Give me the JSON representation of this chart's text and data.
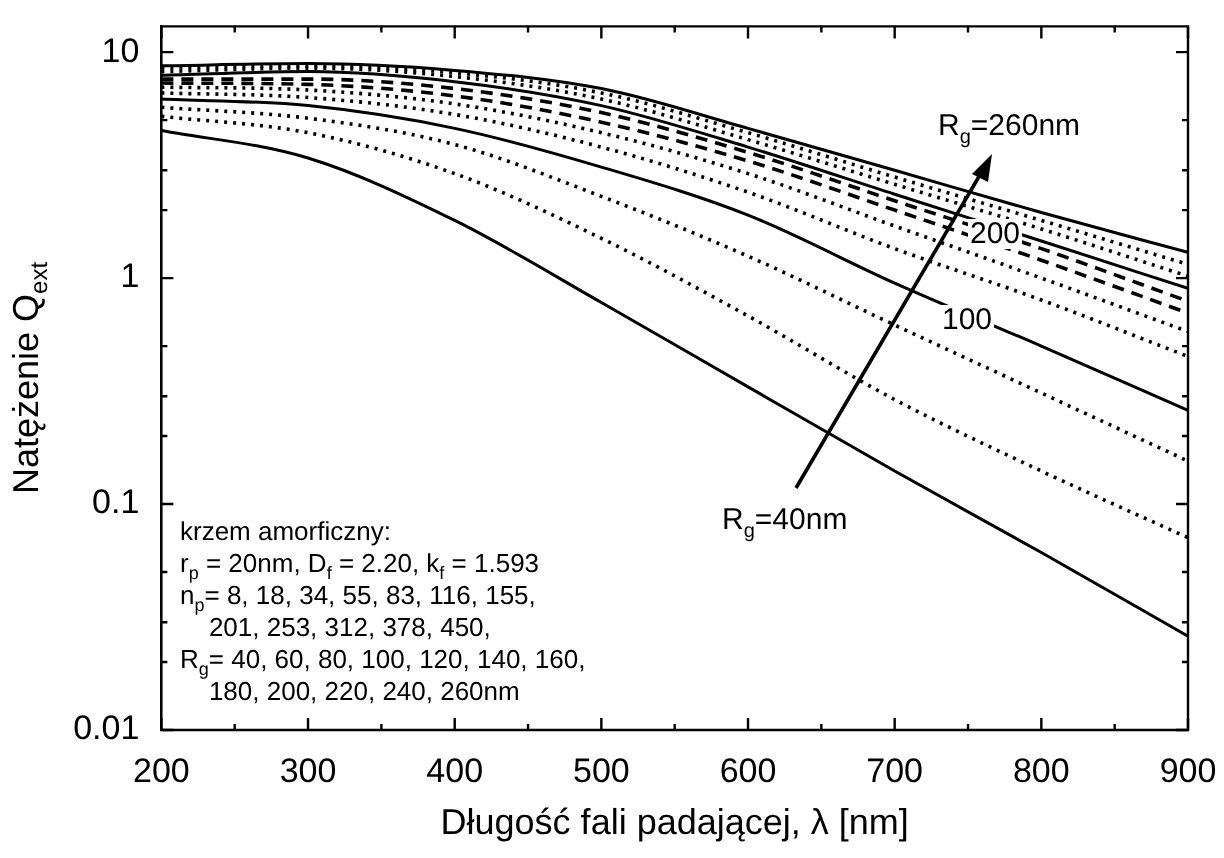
{
  "chart_data": {
    "type": "line",
    "xlabel": "Długość fali padającej, λ [nm]",
    "ylabel": "Natężenie Q$_{ext}$",
    "log": "y",
    "x": [
      200,
      300,
      400,
      500,
      600,
      700,
      800,
      900
    ],
    "xlim": [
      200,
      900
    ],
    "ylim": [
      0.01,
      13
    ],
    "xticks": [
      200,
      {
        "value": 250,
        "label": null
      },
      300,
      {
        "value": 350,
        "label": null
      },
      400,
      {
        "value": 450,
        "label": null
      },
      500,
      {
        "value": 550,
        "label": null
      },
      600,
      {
        "value": 650,
        "label": null
      },
      700,
      {
        "value": 750,
        "label": null
      },
      800,
      {
        "value": 850,
        "label": null
      },
      900
    ],
    "yticks": [
      0.01,
      {
        "value": 0.02,
        "label": null
      },
      {
        "value": 0.03,
        "label": null
      },
      {
        "value": 0.05,
        "label": null
      },
      0.1,
      {
        "value": 0.2,
        "label": null
      },
      {
        "value": 0.3,
        "label": null
      },
      {
        "value": 0.5,
        "label": null
      },
      1,
      {
        "value": 2,
        "label": null
      },
      {
        "value": 3,
        "label": null
      },
      {
        "value": 5,
        "label": null
      },
      10
    ],
    "grid": false,
    "legend": false,
    "marker": "none",
    "series": [
      {
        "color": "#000000",
        "line_style": "solid",
        "values": [
          4.5,
          3.4,
          1.8,
          0.78,
          0.33,
          0.14,
          0.061,
          0.026
        ]
      },
      {
        "color": "#000000",
        "line_style": "dotted",
        "values": [
          5.2,
          4.4,
          2.9,
          1.5,
          0.68,
          0.29,
          0.14,
          0.071
        ]
      },
      {
        "color": "#000000",
        "line_style": "dotted",
        "values": [
          5.7,
          5.1,
          3.9,
          2.3,
          1.25,
          0.62,
          0.31,
          0.155
        ]
      },
      {
        "color": "#000000",
        "line_style": "solid",
        "values": [
          6.2,
          5.8,
          4.6,
          3.1,
          1.9,
          0.95,
          0.5,
          0.26
        ]
      },
      {
        "color": "#000000",
        "line_style": "dotted",
        "values": [
          6.6,
          6.3,
          5.3,
          3.8,
          2.4,
          1.35,
          0.8,
          0.45
        ]
      },
      {
        "color": "#000000",
        "line_style": "dotted",
        "values": [
          7.0,
          6.8,
          5.9,
          4.4,
          2.9,
          1.7,
          1.0,
          0.58
        ]
      },
      {
        "color": "#000000",
        "line_style": "dashed",
        "values": [
          7.3,
          7.2,
          6.4,
          4.9,
          3.3,
          2.0,
          1.2,
          0.7
        ]
      },
      {
        "color": "#000000",
        "line_style": "dashed",
        "values": [
          7.6,
          7.6,
          6.9,
          5.4,
          3.6,
          2.2,
          1.35,
          0.79
        ]
      },
      {
        "color": "#000000",
        "line_style": "solid",
        "values": [
          7.9,
          8.2,
          7.4,
          5.8,
          3.8,
          2.35,
          1.46,
          0.9
        ]
      },
      {
        "color": "#000000",
        "line_style": "dotted",
        "values": [
          8.2,
          8.5,
          7.8,
          6.2,
          4.1,
          2.6,
          1.65,
          1.02
        ]
      },
      {
        "color": "#000000",
        "line_style": "dotted",
        "values": [
          8.5,
          8.7,
          8.1,
          6.6,
          4.4,
          2.8,
          1.8,
          1.15
        ]
      },
      {
        "color": "#000000",
        "line_style": "solid",
        "values": [
          8.7,
          8.9,
          8.3,
          6.9,
          4.6,
          3.0,
          1.95,
          1.3
        ]
      }
    ],
    "annotations": [
      "R$_{g}$=260nm",
      "200",
      "100",
      "R$_{g}$=40nm",
      "krzem amorficzny:",
      "r$_{p}$ = 20nm, D$_{f}$ = 2.20, k$_{f}$ = 1.593",
      "n$_{p}$= 8, 18, 34, 55, 83, 116, 155,",
      "    201, 253, 312, 378, 450,",
      "R$_{g}$= 40, 60, 80, 100, 120, 140, 160,",
      "    180, 200, 220, 240, 260nm"
    ]
  }
}
